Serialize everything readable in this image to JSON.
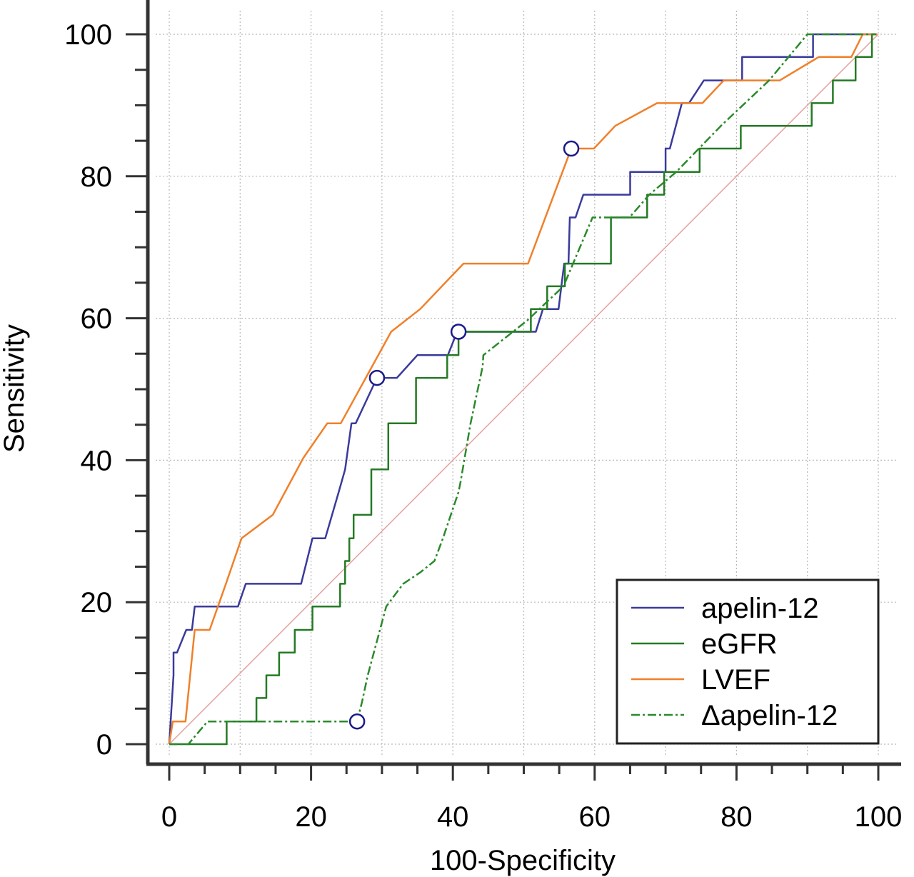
{
  "chart_data": {
    "type": "line",
    "title": "",
    "xlabel": "100-Specificity",
    "ylabel": "Sensitivity",
    "xlim": [
      0,
      100
    ],
    "ylim": [
      0,
      100
    ],
    "x_ticks": [
      "0",
      "20",
      "40",
      "60",
      "80",
      "100"
    ],
    "y_ticks": [
      "0",
      "20",
      "40",
      "60",
      "80",
      "100"
    ],
    "grid": true,
    "legend_position": "bottom-right",
    "reference_line": {
      "x": [
        0,
        100
      ],
      "y": [
        0,
        100
      ],
      "color": "#e6a0a0"
    },
    "series": [
      {
        "name": "apelin-12",
        "color": "#3a3a9c",
        "style": "solid",
        "cutoff": [
          29.3,
          51.6
        ],
        "x": [
          0,
          0.6,
          0.6,
          1.1,
          1.1,
          2.4,
          2.4,
          3.2,
          3.6,
          3.6,
          9.7,
          10.8,
          10.8,
          18.6,
          20.2,
          20.2,
          22,
          22,
          23.9,
          24.8,
          24.8,
          25.7,
          26.3,
          29.3,
          29.3,
          32.1,
          35,
          39.3,
          40.6,
          40.6,
          51.7,
          51.7,
          52.7,
          54.9,
          54.9,
          55.7,
          56.3,
          56.5,
          57.3,
          57.3,
          58.4,
          58.4,
          59.2,
          59.2,
          65,
          65,
          67.5,
          67.5,
          70,
          70,
          70.6,
          72.3,
          72.3,
          73.3,
          75.4,
          75.4,
          78,
          78,
          80.8,
          80.8,
          81.3,
          83.6,
          83.6,
          90.8,
          90.8,
          99.5
        ],
        "y": [
          0,
          9.7,
          12.9,
          12.9,
          12.9,
          16.1,
          16.1,
          16.1,
          19.4,
          19.4,
          19.4,
          22.6,
          22.6,
          22.6,
          29,
          29,
          29,
          29,
          35.5,
          38.7,
          38.7,
          45.2,
          45.2,
          51.6,
          51.6,
          51.6,
          54.8,
          54.8,
          58.1,
          58.1,
          58.1,
          58.1,
          61.3,
          61.3,
          61.3,
          67.7,
          67.7,
          74.2,
          74.2,
          74.2,
          77.4,
          77.4,
          77.4,
          77.4,
          77.4,
          80.6,
          80.6,
          80.6,
          80.6,
          83.9,
          83.9,
          90.3,
          90.3,
          90.3,
          93.5,
          93.5,
          93.5,
          93.5,
          93.5,
          96.8,
          96.8,
          96.8,
          96.8,
          96.8,
          100,
          100
        ]
      },
      {
        "name": "eGFR",
        "color": "#247a24",
        "style": "solid",
        "cutoff": [
          40.8,
          58.1
        ],
        "x": [
          0,
          8.1,
          8.1,
          12.3,
          12.3,
          13.7,
          13.7,
          15.5,
          15.5,
          17.7,
          17.7,
          20.2,
          20.2,
          24.1,
          24.1,
          24.8,
          24.8,
          25.4,
          25.4,
          26,
          26,
          28.5,
          28.5,
          30.9,
          30.9,
          34.8,
          34.8,
          39.2,
          39.2,
          40.8,
          40.8,
          51,
          51,
          53.3,
          53.3,
          55.8,
          55.8,
          56.4,
          56.4,
          62.3,
          62.3,
          63.6,
          63.6,
          67.4,
          67.4,
          69.8,
          69.8,
          74.8,
          74.8,
          80.6,
          80.6,
          90.6,
          90.6,
          93.6,
          93.6,
          96.8,
          96.8,
          99.1,
          99.1,
          99.8
        ],
        "y": [
          0,
          0,
          3.2,
          3.2,
          6.5,
          6.5,
          9.7,
          9.7,
          12.9,
          12.9,
          16.1,
          16.1,
          19.4,
          19.4,
          22.6,
          22.6,
          25.8,
          25.8,
          29,
          29,
          32.3,
          32.3,
          38.7,
          38.7,
          45.2,
          45.2,
          51.6,
          51.6,
          54.8,
          54.8,
          58.1,
          58.1,
          61.3,
          61.3,
          64.5,
          64.5,
          67.7,
          67.7,
          67.7,
          67.7,
          74.2,
          74.2,
          74.2,
          74.2,
          77.4,
          77.4,
          80.6,
          80.6,
          83.9,
          83.9,
          87.1,
          87.1,
          90.3,
          90.3,
          93.5,
          93.5,
          96.8,
          96.8,
          100,
          100
        ]
      },
      {
        "name": "LVEF",
        "color": "#f0802a",
        "style": "solid",
        "cutoff": [
          56.7,
          83.9
        ],
        "x": [
          0,
          0.5,
          2.2,
          2.3,
          3.6,
          5.7,
          8,
          10.2,
          14.6,
          18.9,
          22.3,
          24.2,
          31.3,
          35.4,
          41.5,
          50.6,
          56.7,
          56.7,
          59.9,
          62.9,
          68.8,
          75.2,
          78.2,
          80.9,
          86.1,
          91.6,
          96.2,
          97.8,
          99.8
        ],
        "y": [
          0,
          3.2,
          3.2,
          3.2,
          16.1,
          16.1,
          22.6,
          29,
          32.3,
          40.3,
          45.2,
          45.2,
          58.1,
          61.3,
          67.7,
          67.7,
          83.9,
          83.9,
          83.9,
          87.1,
          90.3,
          90.3,
          93.5,
          93.5,
          93.5,
          96.8,
          96.8,
          100,
          100
        ]
      },
      {
        "name": "Δapelin-12",
        "color": "#2a8a2a",
        "style": "dashdot",
        "cutoff": [
          26.5,
          3.2
        ],
        "x": [
          0,
          2.7,
          5.4,
          26.5,
          27.2,
          28,
          30.6,
          33,
          35.4,
          37.4,
          38.6,
          40.8,
          41.1,
          42.5,
          44.2,
          44.3,
          50.5,
          55.6,
          59.7,
          64.9,
          67.7,
          71.5,
          77.8,
          84.6,
          90,
          90.7,
          93,
          99.7
        ],
        "y": [
          0,
          0,
          3.2,
          3.2,
          6,
          9.7,
          19.4,
          22.6,
          24.2,
          25.8,
          29,
          35.5,
          37,
          45.2,
          53.2,
          54.8,
          59.7,
          64.5,
          74.2,
          74.2,
          77.4,
          80.6,
          87.1,
          93.5,
          100,
          100,
          100,
          100
        ]
      }
    ]
  }
}
